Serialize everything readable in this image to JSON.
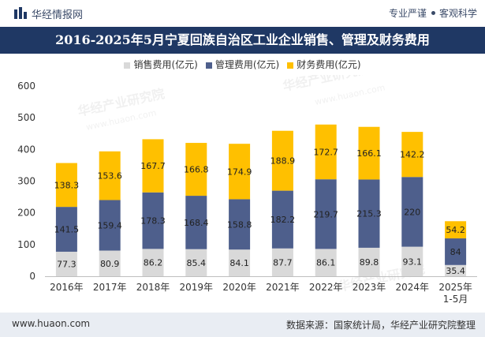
{
  "header": {
    "brand": "华经情报网",
    "slogan_left": "专业严谨",
    "slogan_right": "客观科学"
  },
  "chart_data": {
    "type": "bar",
    "stacked": true,
    "title": "2016-2025年5月宁夏回族自治区工业企业销售、管理及财务费用",
    "categories": [
      "2016年",
      "2017年",
      "2018年",
      "2019年",
      "2020年",
      "2021年",
      "2022年",
      "2023年",
      "2024年",
      "2025年\n1-5月"
    ],
    "series": [
      {
        "name": "销售费用(亿元)",
        "color": "#d9d9d9",
        "values": [
          77.3,
          80.9,
          86.2,
          85.4,
          84.1,
          87.7,
          86.1,
          89.8,
          93.1,
          35.4
        ]
      },
      {
        "name": "管理费用(亿元)",
        "color": "#4e5f8c",
        "values": [
          141.5,
          159.4,
          178.3,
          168.4,
          158.8,
          182.2,
          219.7,
          215.3,
          220,
          84
        ]
      },
      {
        "name": "财务费用(亿元)",
        "color": "#ffc000",
        "values": [
          138.3,
          153.6,
          167.7,
          166.8,
          174.9,
          188.9,
          172.7,
          166.1,
          142.2,
          54.2
        ]
      }
    ],
    "ylim": [
      0,
      600
    ],
    "yticks": [
      0,
      100,
      200,
      300,
      400,
      500,
      600
    ],
    "xlabel": "",
    "ylabel": "",
    "grid": false,
    "legend_position": "top-center",
    "watermark": {
      "text": "华经产业研究院",
      "url": "www.huaon.com"
    }
  },
  "footer": {
    "url": "www.huaon.com",
    "source": "数据来源：国家统计局，华经产业研究院整理"
  }
}
